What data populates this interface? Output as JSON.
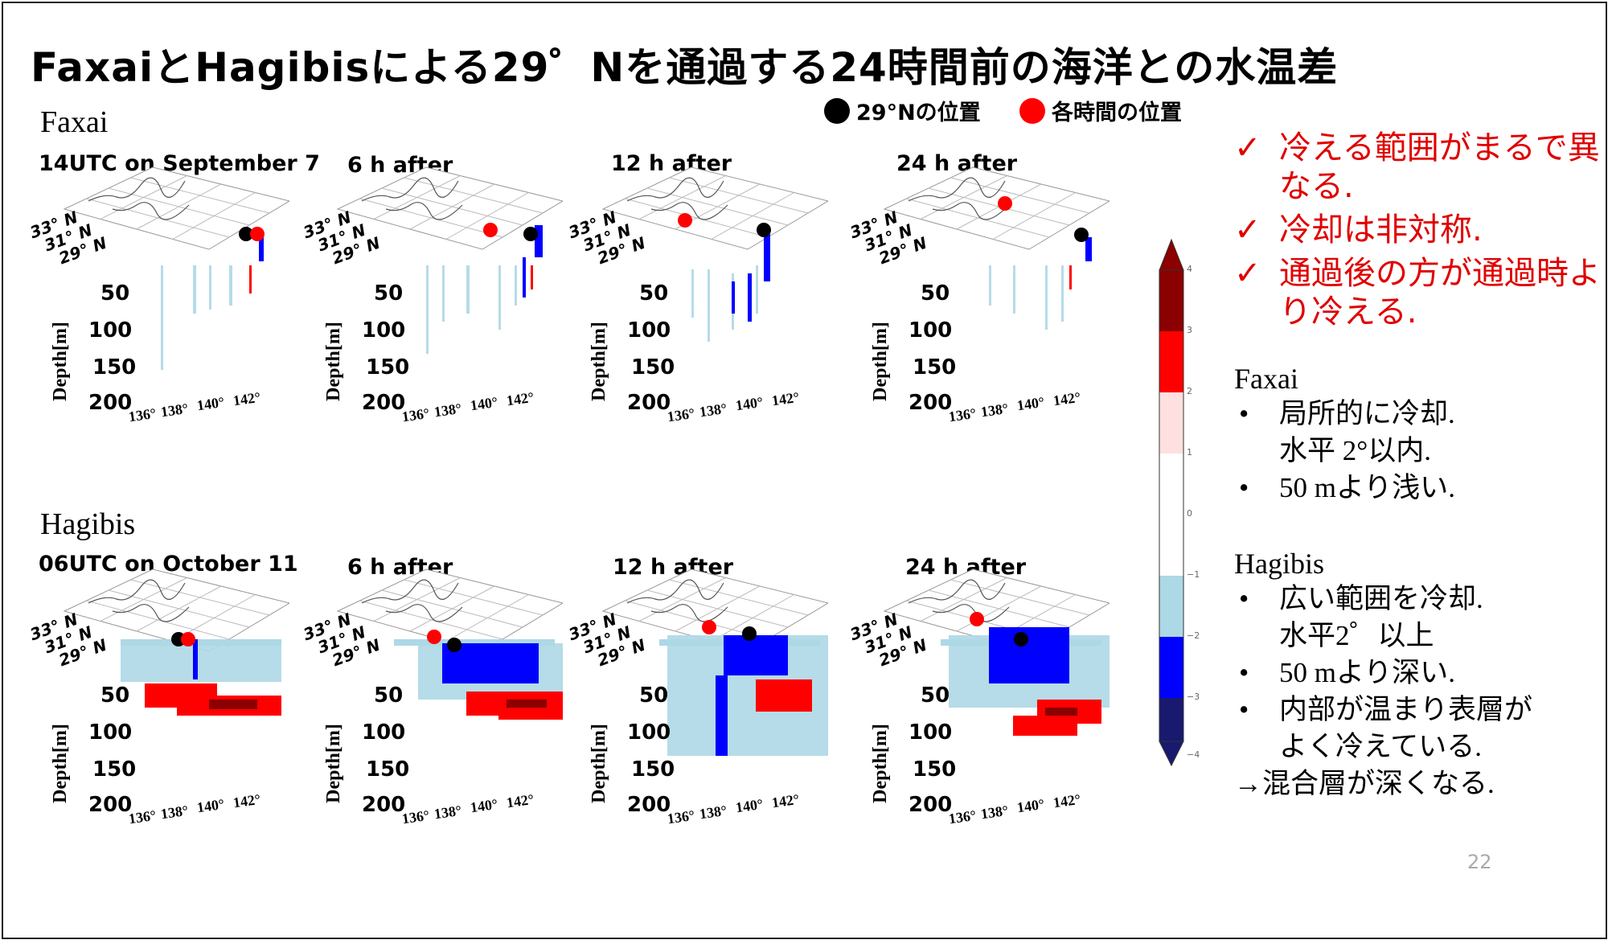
{
  "slide": {
    "title": "FaxaiとHagibisによる29゜Nを通過する24時間前の海洋との水温差",
    "page_number": "22"
  },
  "legend": {
    "black_dot_label": "29°Nの位置",
    "red_dot_label": "各時間の位置",
    "black_color": "#000000",
    "red_color": "#ff0000"
  },
  "rows": [
    {
      "name": "Faxai",
      "panels": [
        {
          "title": "14UTC on September 7"
        },
        {
          "title": "6 h after"
        },
        {
          "title": "12 h after"
        },
        {
          "title": "24 h after"
        }
      ]
    },
    {
      "name": "Hagibis",
      "panels": [
        {
          "title": "06UTC on October 11"
        },
        {
          "title": "6 h after"
        },
        {
          "title": "12 h after"
        },
        {
          "title": "24 h after"
        }
      ]
    }
  ],
  "axes": {
    "lat_ticks": [
      "33° N",
      "31° N",
      "29° N"
    ],
    "depth_ticks": [
      "50",
      "100",
      "150",
      "200"
    ],
    "depth_label": "Depth[m]",
    "lon_ticks": [
      "136°",
      "138°",
      "140°",
      "142°"
    ]
  },
  "colorbar": {
    "ticks": [
      "4",
      "3",
      "2",
      "1",
      "0",
      "−1",
      "−2",
      "−3",
      "−4"
    ],
    "colors": [
      "#8b0000",
      "#ff0000",
      "#ffe0e0",
      "#ffffff",
      "#ffffff",
      "#add8e6",
      "#0000ff",
      "#191970"
    ]
  },
  "checks": [
    "冷える範囲がまるで異なる.",
    "冷却は非対称.",
    "通過後の方が通過時より冷える."
  ],
  "faxai_notes": {
    "heading": "Faxai",
    "items": [
      {
        "line1": "局所的に冷却.",
        "line2": "水平 2°以内."
      },
      {
        "line1": "50 mより浅い.",
        "line2": ""
      }
    ]
  },
  "hagibis_notes": {
    "heading": "Hagibis",
    "items": [
      {
        "line1": "広い範囲を冷却.",
        "line2": " 水平2゜以上"
      },
      {
        "line1": "50 mより深い.",
        "line2": ""
      },
      {
        "line1": "内部が温まり表層が",
        "line2": "よく冷えている."
      }
    ],
    "conclusion": "→混合層が深くなる."
  }
}
